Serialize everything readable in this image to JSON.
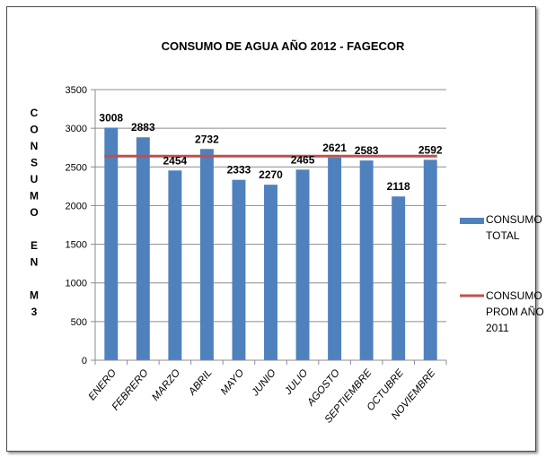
{
  "chart_data": {
    "type": "bar",
    "title": "CONSUMO DE AGUA AÑO 2012 - FAGECOR",
    "ylabel_letters": [
      "C",
      "O",
      "N",
      "S",
      "U",
      "M",
      "O",
      "",
      "E",
      "N",
      "",
      "M",
      "3"
    ],
    "ylim": [
      0,
      3500
    ],
    "yticks": [
      0,
      500,
      1000,
      1500,
      2000,
      2500,
      3000,
      3500
    ],
    "ytick_labels": [
      "0",
      "500",
      "1000",
      "1500",
      "2000",
      "2500",
      "3000",
      "3500"
    ],
    "categories": [
      "ENERO",
      "FEBRERO",
      "MARZO",
      "ABRIL",
      "MAYO",
      "JUNIO",
      "JULIO",
      "AGOSTO",
      "SEPTIEMBRE",
      "OCTUBRE",
      "NOVIEMBRE"
    ],
    "series": [
      {
        "type": "bar",
        "color": "#4f81bd",
        "values": [
          3008,
          2883,
          2454,
          2732,
          2333,
          2270,
          2465,
          2621,
          2583,
          2118,
          2592
        ],
        "data_labels": [
          "3008",
          "2883",
          "2454",
          "2732",
          "2333",
          "2270",
          "2465",
          "2621",
          "2583",
          "2118",
          "2592"
        ]
      },
      {
        "type": "line",
        "color": "#c0504d",
        "value": 2640
      }
    ],
    "legend": {
      "placement": "right",
      "items": [
        {
          "lines": [
            "CONSUMO",
            "TOTAL"
          ],
          "color": "#4f81bd",
          "marker": "bar"
        },
        {
          "lines": [
            "CONSUMO",
            "PROM AÑO",
            "2011"
          ],
          "color": "#c0504d",
          "marker": "line"
        }
      ]
    },
    "grid": true
  }
}
